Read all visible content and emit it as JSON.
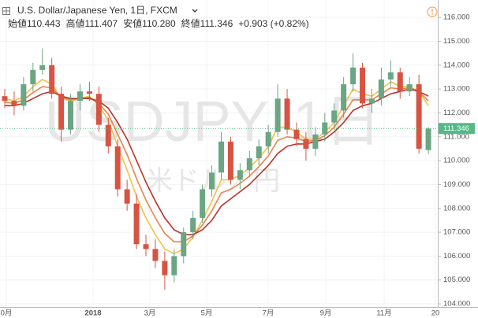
{
  "chart_data": {
    "type": "candlestick",
    "header": {
      "title": "U.S. Dollar/Japanese Yen, 1日, FXCM",
      "fields": [
        {
          "label": "始値",
          "value": "110.443"
        },
        {
          "label": "高値",
          "value": "111.407"
        },
        {
          "label": "安値",
          "value": "110.280"
        },
        {
          "label": "終値",
          "value": "111.346"
        }
      ],
      "change": "+0.903 (+0.82%)"
    },
    "watermark": "USDJPY, 1日",
    "watermark_sub": "米ドル／円",
    "x_labels": [
      "0月",
      "2018",
      "3月",
      "5月",
      "7月",
      "9月",
      "11月",
      "20"
    ],
    "open": [
      112.7,
      112.5,
      112.3,
      113.2,
      113.8,
      114.0,
      112.8,
      111.3,
      112.5,
      112.9,
      112.8,
      111.5,
      110.6,
      108.8,
      108.2,
      106.5,
      106.3,
      105.8,
      105.2,
      106.0,
      107.0,
      107.6,
      108.8,
      109.5,
      110.8,
      109.2,
      109.6,
      110.1,
      110.6,
      111.2,
      112.6,
      111.3,
      110.9,
      110.5,
      111.1,
      111.6,
      112.1,
      113.2,
      113.9,
      112.4,
      112.6,
      113.4,
      113.7,
      112.9,
      113.2,
      110.443
    ],
    "high": [
      113.0,
      112.9,
      113.5,
      114.1,
      114.7,
      114.3,
      113.1,
      112.8,
      113.2,
      113.3,
      113.1,
      111.8,
      110.9,
      109.2,
      108.6,
      106.9,
      106.7,
      106.2,
      106.3,
      107.2,
      107.9,
      109.0,
      109.8,
      111.2,
      111.0,
      109.9,
      110.4,
      110.9,
      111.5,
      113.2,
      113.0,
      111.6,
      111.2,
      111.4,
      112.0,
      112.4,
      113.5,
      114.5,
      114.1,
      113.0,
      113.9,
      114.2,
      113.9,
      113.5,
      113.6,
      111.407
    ],
    "low": [
      112.2,
      111.9,
      112.1,
      112.9,
      113.6,
      112.6,
      110.8,
      111.1,
      112.1,
      112.5,
      111.2,
      110.3,
      108.5,
      107.9,
      106.3,
      106.0,
      105.5,
      104.6,
      104.9,
      105.7,
      106.7,
      107.4,
      108.5,
      109.2,
      109.0,
      108.8,
      109.3,
      109.8,
      110.3,
      111.0,
      111.1,
      110.6,
      110.0,
      110.2,
      110.8,
      111.3,
      111.8,
      112.9,
      112.2,
      112.0,
      112.3,
      113.1,
      112.6,
      112.7,
      110.3,
      110.28
    ],
    "close": [
      112.5,
      112.3,
      113.2,
      113.8,
      114.0,
      112.8,
      111.3,
      112.5,
      112.9,
      112.8,
      111.5,
      110.6,
      108.8,
      108.2,
      106.5,
      106.3,
      105.8,
      105.2,
      106.0,
      107.0,
      107.6,
      108.8,
      109.5,
      110.8,
      109.2,
      109.6,
      110.1,
      110.6,
      111.2,
      112.6,
      111.3,
      110.9,
      110.5,
      111.1,
      111.6,
      112.1,
      113.2,
      113.9,
      112.4,
      112.6,
      113.4,
      113.7,
      112.9,
      113.2,
      110.5,
      111.346
    ],
    "up_color": "#6ba583",
    "down_color": "#d75442",
    "last_color": "#53b987",
    "series": [
      {
        "color": "#f5c04a",
        "values": [
          112.6,
          112.5,
          112.7,
          113.1,
          113.4,
          113.2,
          112.6,
          112.5,
          112.6,
          112.7,
          112.3,
          111.7,
          110.6,
          109.6,
          108.5,
          107.6,
          106.9,
          106.3,
          106.1,
          106.3,
          106.8,
          107.5,
          108.3,
          109.2,
          109.2,
          109.4,
          109.7,
          110.1,
          110.6,
          111.4,
          111.4,
          111.2,
          110.9,
          110.9,
          111.2,
          111.6,
          112.3,
          113.0,
          112.8,
          112.7,
          113.0,
          113.3,
          113.1,
          113.1,
          112.9,
          112.3
        ]
      },
      {
        "color": "#e8844e",
        "values": [
          112.45,
          112.4,
          112.55,
          112.85,
          113.1,
          113.05,
          112.65,
          112.55,
          112.6,
          112.65,
          112.4,
          111.95,
          111.1,
          110.25,
          109.25,
          108.35,
          107.6,
          106.95,
          106.6,
          106.6,
          106.85,
          107.3,
          107.9,
          108.65,
          108.8,
          109.05,
          109.35,
          109.75,
          110.2,
          110.85,
          111.0,
          110.95,
          110.8,
          110.85,
          111.05,
          111.4,
          111.95,
          112.55,
          112.55,
          112.55,
          112.8,
          113.05,
          113.0,
          113.05,
          112.9,
          112.5
        ]
      },
      {
        "color": "#b8332a",
        "values": [
          112.3,
          112.3,
          112.4,
          112.6,
          112.8,
          112.9,
          112.7,
          112.6,
          112.6,
          112.6,
          112.5,
          112.2,
          111.6,
          110.9,
          110.0,
          109.1,
          108.3,
          107.6,
          107.1,
          106.9,
          106.9,
          107.1,
          107.5,
          108.1,
          108.4,
          108.7,
          109.0,
          109.4,
          109.8,
          110.3,
          110.6,
          110.7,
          110.7,
          110.8,
          110.9,
          111.2,
          111.6,
          112.1,
          112.3,
          112.4,
          112.6,
          112.8,
          112.9,
          113.0,
          112.9,
          112.7
        ]
      }
    ],
    "ylim": [
      103.87,
      116.73
    ],
    "yticks": [
      {
        "value": 104,
        "label": "104.000"
      },
      {
        "value": 105,
        "label": "105.000"
      },
      {
        "value": 106,
        "label": "106.000"
      },
      {
        "value": 107,
        "label": "107.000"
      },
      {
        "value": 108,
        "label": "108.000"
      },
      {
        "value": 109,
        "label": "109.000"
      },
      {
        "value": 110,
        "label": "110.000"
      },
      {
        "value": 111,
        "label": "111.000"
      },
      {
        "value": 112,
        "label": "112.000"
      },
      {
        "value": 113,
        "label": "113.000"
      },
      {
        "value": 114,
        "label": "114.000"
      },
      {
        "value": 115,
        "label": "115.000"
      },
      {
        "value": 116,
        "label": "116.000"
      }
    ],
    "grid": true
  }
}
